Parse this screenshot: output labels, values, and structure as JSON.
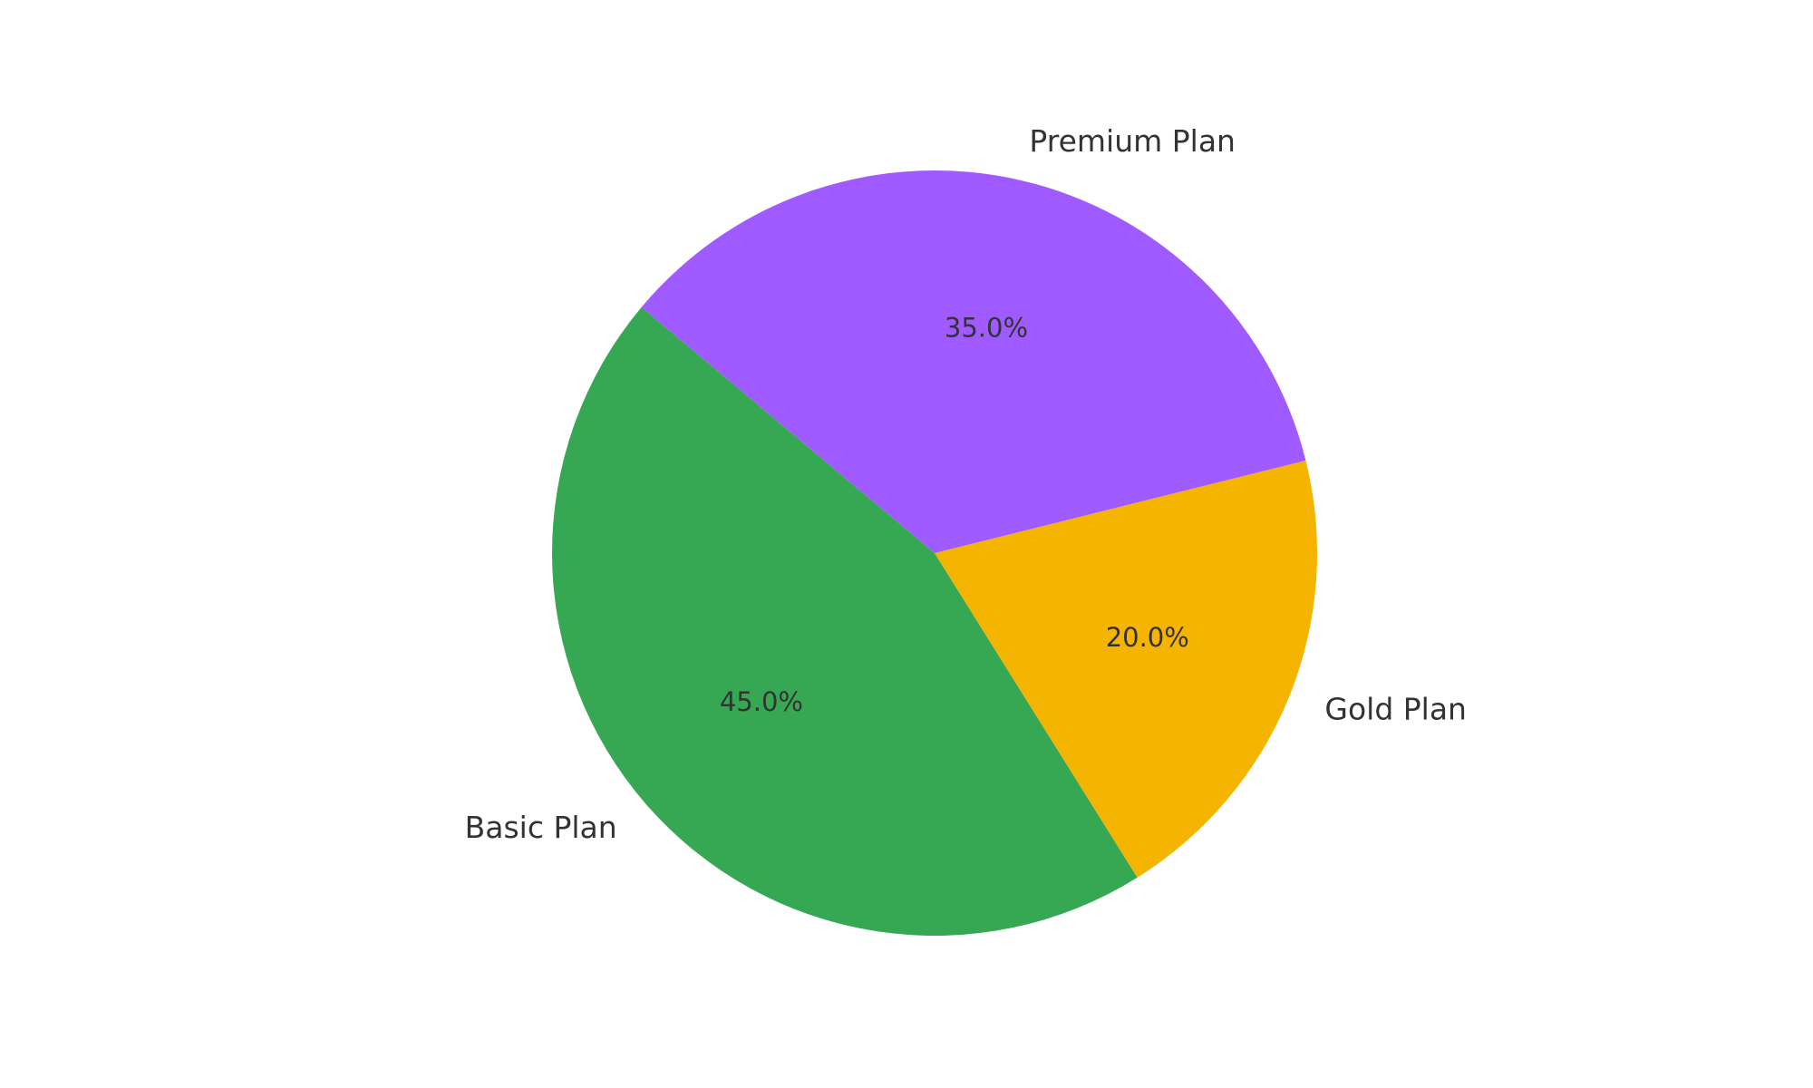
{
  "chart_data": {
    "type": "pie",
    "title": "",
    "categories": [
      "Basic Plan",
      "Gold Plan",
      "Premium Plan"
    ],
    "values": [
      45.0,
      20.0,
      35.0
    ],
    "percent_labels": [
      "45.0%",
      "20.0%",
      "35.0%"
    ],
    "colors": [
      "#36a853",
      "#f4b400",
      "#9f5bff"
    ],
    "start_angle_deg": 140,
    "direction": "counterclockwise",
    "legend": "none"
  }
}
